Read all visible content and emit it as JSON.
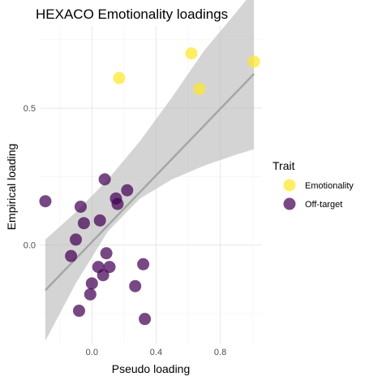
{
  "chart_data": {
    "type": "scatter",
    "title": "HEXACO Emotionality loadings",
    "xlabel": "Pseudo loading",
    "ylabel": "Empirical loading",
    "xlim": [
      -0.32,
      1.06
    ],
    "ylim": [
      -0.36,
      0.8
    ],
    "x_ticks": [
      0.0,
      0.4,
      0.8
    ],
    "x_tick_labels": [
      "0.0",
      "0.4",
      "0.8"
    ],
    "y_ticks": [
      0.0,
      0.5
    ],
    "y_tick_labels": [
      "0.0",
      "0.5"
    ],
    "grid": true,
    "legend_position": "right",
    "legend_title": "Trait",
    "series": [
      {
        "name": "Emotionality",
        "color": "#FDE725",
        "points": [
          {
            "x": 0.17,
            "y": 0.61
          },
          {
            "x": 0.62,
            "y": 0.7
          },
          {
            "x": 0.67,
            "y": 0.57
          },
          {
            "x": 1.01,
            "y": 0.67
          }
        ]
      },
      {
        "name": "Off-target",
        "color": "#440154",
        "points": [
          {
            "x": -0.29,
            "y": 0.16
          },
          {
            "x": -0.07,
            "y": 0.14
          },
          {
            "x": -0.05,
            "y": 0.08
          },
          {
            "x": -0.1,
            "y": 0.02
          },
          {
            "x": -0.13,
            "y": -0.04
          },
          {
            "x": 0.05,
            "y": 0.09
          },
          {
            "x": 0.08,
            "y": 0.24
          },
          {
            "x": 0.15,
            "y": 0.17
          },
          {
            "x": 0.16,
            "y": 0.15
          },
          {
            "x": 0.22,
            "y": 0.2
          },
          {
            "x": 0.09,
            "y": -0.03
          },
          {
            "x": 0.04,
            "y": -0.08
          },
          {
            "x": 0.11,
            "y": -0.08
          },
          {
            "x": 0.07,
            "y": -0.11
          },
          {
            "x": 0.0,
            "y": -0.14
          },
          {
            "x": -0.01,
            "y": -0.18
          },
          {
            "x": -0.08,
            "y": -0.24
          },
          {
            "x": 0.27,
            "y": -0.15
          },
          {
            "x": 0.32,
            "y": -0.07
          },
          {
            "x": 0.33,
            "y": -0.27
          }
        ]
      }
    ],
    "fit_line": {
      "x": [
        -0.29,
        1.01
      ],
      "y": [
        -0.165,
        0.625
      ],
      "color": "#A6A6A6"
    },
    "confidence_band": {
      "color": "#BDBDBD",
      "x": [
        -0.29,
        -0.1,
        0.1,
        0.3,
        0.5,
        0.7,
        0.9,
        1.01
      ],
      "lower": [
        -0.35,
        -0.14,
        0.05,
        0.17,
        0.24,
        0.29,
        0.33,
        0.35
      ],
      "upper": [
        0.02,
        0.12,
        0.24,
        0.38,
        0.54,
        0.71,
        0.85,
        0.93
      ]
    }
  }
}
